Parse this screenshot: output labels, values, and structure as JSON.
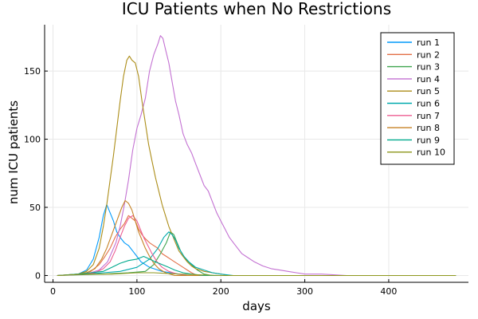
{
  "chart_data": {
    "type": "line",
    "title": "ICU Patients when No Restrictions",
    "xlabel": "days",
    "ylabel": "num ICU patients",
    "xlim": [
      -10,
      495
    ],
    "ylim": [
      -5,
      184
    ],
    "xticks": [
      0,
      100,
      200,
      300,
      400
    ],
    "yticks": [
      0,
      50,
      100,
      150
    ],
    "grid": true,
    "legend_position": "top-right",
    "series": [
      {
        "name": "run 1",
        "color": "#009AFA",
        "points": [
          [
            5,
            0
          ],
          [
            30,
            1
          ],
          [
            40,
            4
          ],
          [
            48,
            12
          ],
          [
            55,
            28
          ],
          [
            60,
            44
          ],
          [
            64,
            52
          ],
          [
            68,
            46
          ],
          [
            72,
            40
          ],
          [
            76,
            32
          ],
          [
            80,
            28
          ],
          [
            85,
            24
          ],
          [
            90,
            22
          ],
          [
            95,
            18
          ],
          [
            100,
            14
          ],
          [
            105,
            10
          ],
          [
            110,
            8
          ],
          [
            115,
            6
          ],
          [
            120,
            5
          ],
          [
            125,
            4
          ],
          [
            130,
            3
          ],
          [
            140,
            2
          ],
          [
            150,
            1
          ],
          [
            160,
            0
          ],
          [
            350,
            0
          ]
        ]
      },
      {
        "name": "run 2",
        "color": "#E36F47",
        "points": [
          [
            5,
            0
          ],
          [
            35,
            1
          ],
          [
            45,
            3
          ],
          [
            55,
            8
          ],
          [
            62,
            14
          ],
          [
            68,
            20
          ],
          [
            74,
            28
          ],
          [
            80,
            34
          ],
          [
            85,
            38
          ],
          [
            90,
            44
          ],
          [
            94,
            42
          ],
          [
            98,
            40
          ],
          [
            102,
            34
          ],
          [
            106,
            30
          ],
          [
            110,
            27
          ],
          [
            115,
            24
          ],
          [
            120,
            22
          ],
          [
            125,
            20
          ],
          [
            130,
            16
          ],
          [
            135,
            14
          ],
          [
            140,
            12
          ],
          [
            145,
            10
          ],
          [
            150,
            8
          ],
          [
            155,
            6
          ],
          [
            160,
            4
          ],
          [
            165,
            2
          ],
          [
            172,
            0
          ],
          [
            480,
            0
          ]
        ]
      },
      {
        "name": "run 3",
        "color": "#3EA44E",
        "points": [
          [
            5,
            0
          ],
          [
            60,
            1
          ],
          [
            90,
            2
          ],
          [
            110,
            3
          ],
          [
            120,
            8
          ],
          [
            128,
            16
          ],
          [
            135,
            24
          ],
          [
            140,
            32
          ],
          [
            144,
            30
          ],
          [
            148,
            24
          ],
          [
            152,
            18
          ],
          [
            158,
            12
          ],
          [
            165,
            8
          ],
          [
            172,
            4
          ],
          [
            180,
            1
          ],
          [
            190,
            0
          ],
          [
            480,
            0
          ]
        ]
      },
      {
        "name": "run 4",
        "color": "#C371D2",
        "points": [
          [
            5,
            0
          ],
          [
            40,
            1
          ],
          [
            55,
            4
          ],
          [
            65,
            10
          ],
          [
            75,
            24
          ],
          [
            80,
            36
          ],
          [
            85,
            52
          ],
          [
            90,
            70
          ],
          [
            95,
            92
          ],
          [
            100,
            108
          ],
          [
            105,
            118
          ],
          [
            110,
            130
          ],
          [
            115,
            150
          ],
          [
            120,
            162
          ],
          [
            125,
            170
          ],
          [
            128,
            176
          ],
          [
            131,
            174
          ],
          [
            134,
            166
          ],
          [
            138,
            156
          ],
          [
            142,
            142
          ],
          [
            146,
            128
          ],
          [
            150,
            118
          ],
          [
            155,
            104
          ],
          [
            160,
            96
          ],
          [
            165,
            90
          ],
          [
            170,
            82
          ],
          [
            175,
            74
          ],
          [
            180,
            66
          ],
          [
            185,
            62
          ],
          [
            190,
            54
          ],
          [
            195,
            46
          ],
          [
            200,
            40
          ],
          [
            205,
            34
          ],
          [
            210,
            28
          ],
          [
            215,
            24
          ],
          [
            220,
            20
          ],
          [
            225,
            16
          ],
          [
            230,
            14
          ],
          [
            240,
            10
          ],
          [
            250,
            7
          ],
          [
            260,
            5
          ],
          [
            270,
            4
          ],
          [
            280,
            3
          ],
          [
            290,
            2
          ],
          [
            300,
            1
          ],
          [
            320,
            1
          ],
          [
            350,
            0
          ]
        ]
      },
      {
        "name": "run 5",
        "color": "#AC8D18",
        "points": [
          [
            5,
            0
          ],
          [
            30,
            1
          ],
          [
            40,
            3
          ],
          [
            48,
            8
          ],
          [
            55,
            20
          ],
          [
            60,
            36
          ],
          [
            64,
            52
          ],
          [
            68,
            70
          ],
          [
            72,
            88
          ],
          [
            76,
            108
          ],
          [
            80,
            128
          ],
          [
            84,
            146
          ],
          [
            88,
            158
          ],
          [
            91,
            161
          ],
          [
            94,
            158
          ],
          [
            98,
            156
          ],
          [
            102,
            146
          ],
          [
            106,
            128
          ],
          [
            110,
            112
          ],
          [
            114,
            96
          ],
          [
            118,
            84
          ],
          [
            122,
            72
          ],
          [
            126,
            62
          ],
          [
            130,
            52
          ],
          [
            134,
            44
          ],
          [
            138,
            36
          ],
          [
            142,
            30
          ],
          [
            146,
            24
          ],
          [
            150,
            18
          ],
          [
            155,
            14
          ],
          [
            160,
            10
          ],
          [
            165,
            7
          ],
          [
            170,
            5
          ],
          [
            180,
            3
          ],
          [
            190,
            2
          ],
          [
            200,
            1
          ],
          [
            210,
            0
          ],
          [
            480,
            0
          ]
        ]
      },
      {
        "name": "run 6",
        "color": "#00A9AD",
        "points": [
          [
            5,
            0
          ],
          [
            40,
            1
          ],
          [
            60,
            2
          ],
          [
            80,
            3
          ],
          [
            100,
            6
          ],
          [
            115,
            12
          ],
          [
            125,
            20
          ],
          [
            132,
            28
          ],
          [
            138,
            32
          ],
          [
            142,
            30
          ],
          [
            146,
            26
          ],
          [
            150,
            20
          ],
          [
            156,
            14
          ],
          [
            162,
            10
          ],
          [
            170,
            6
          ],
          [
            180,
            4
          ],
          [
            190,
            2
          ],
          [
            200,
            1
          ],
          [
            215,
            0
          ],
          [
            480,
            0
          ]
        ]
      },
      {
        "name": "run 7",
        "color": "#ED5D92",
        "points": [
          [
            5,
            0
          ],
          [
            40,
            1
          ],
          [
            50,
            2
          ],
          [
            60,
            5
          ],
          [
            68,
            10
          ],
          [
            74,
            18
          ],
          [
            80,
            28
          ],
          [
            85,
            36
          ],
          [
            90,
            42
          ],
          [
            95,
            44
          ],
          [
            100,
            40
          ],
          [
            104,
            34
          ],
          [
            108,
            28
          ],
          [
            113,
            22
          ],
          [
            118,
            16
          ],
          [
            124,
            10
          ],
          [
            130,
            6
          ],
          [
            138,
            3
          ],
          [
            148,
            1
          ],
          [
            160,
            0
          ],
          [
            480,
            0
          ]
        ]
      },
      {
        "name": "run 8",
        "color": "#C68225",
        "points": [
          [
            5,
            0
          ],
          [
            30,
            1
          ],
          [
            40,
            2
          ],
          [
            50,
            5
          ],
          [
            58,
            12
          ],
          [
            64,
            20
          ],
          [
            70,
            30
          ],
          [
            76,
            40
          ],
          [
            82,
            50
          ],
          [
            86,
            55
          ],
          [
            90,
            53
          ],
          [
            94,
            48
          ],
          [
            98,
            40
          ],
          [
            102,
            32
          ],
          [
            106,
            26
          ],
          [
            110,
            20
          ],
          [
            115,
            14
          ],
          [
            120,
            9
          ],
          [
            126,
            5
          ],
          [
            134,
            2
          ],
          [
            145,
            0
          ],
          [
            480,
            0
          ]
        ]
      },
      {
        "name": "run 9",
        "color": "#00A98D",
        "points": [
          [
            5,
            0
          ],
          [
            30,
            1
          ],
          [
            45,
            2
          ],
          [
            60,
            3
          ],
          [
            70,
            6
          ],
          [
            80,
            9
          ],
          [
            90,
            11
          ],
          [
            100,
            12
          ],
          [
            108,
            14
          ],
          [
            115,
            12
          ],
          [
            122,
            10
          ],
          [
            130,
            8
          ],
          [
            138,
            6
          ],
          [
            145,
            4
          ],
          [
            155,
            2
          ],
          [
            165,
            1
          ],
          [
            180,
            0
          ],
          [
            480,
            0
          ]
        ]
      },
      {
        "name": "run 10",
        "color": "#8E971D",
        "points": [
          [
            5,
            0
          ],
          [
            40,
            1
          ],
          [
            70,
            1
          ],
          [
            100,
            2
          ],
          [
            120,
            2
          ],
          [
            150,
            1
          ],
          [
            200,
            0
          ],
          [
            480,
            0
          ]
        ]
      }
    ]
  }
}
